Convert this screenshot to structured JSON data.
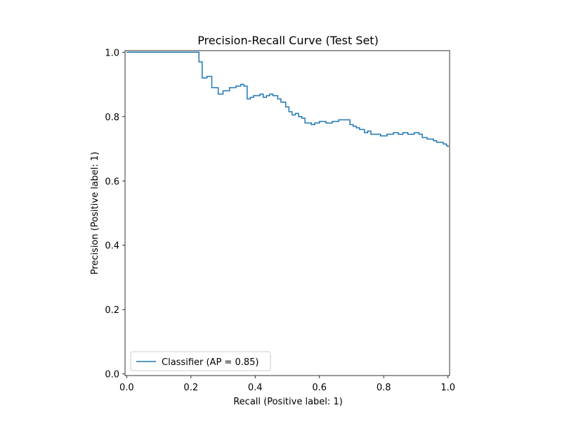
{
  "chart_data": {
    "type": "line",
    "title": "Precision-Recall Curve (Test Set)",
    "xlabel": "Recall (Positive label: 1)",
    "ylabel": "Precision (Positive label: 1)",
    "xlim": [
      -0.005,
      1.005
    ],
    "ylim": [
      -0.005,
      1.005
    ],
    "xticks": [
      0.0,
      0.2,
      0.4,
      0.6,
      0.8,
      1.0
    ],
    "xtick_labels": [
      "0.0",
      "0.2",
      "0.4",
      "0.6",
      "0.8",
      "1.0"
    ],
    "yticks": [
      0.0,
      0.2,
      0.4,
      0.6,
      0.8,
      1.0
    ],
    "ytick_labels": [
      "0.0",
      "0.2",
      "0.4",
      "0.6",
      "0.8",
      "1.0"
    ],
    "grid": false,
    "legend_position": "lower-left",
    "drawstyle": "steps-post",
    "series": [
      {
        "name": "Classifier (AP = 0.85)",
        "color": "#1f77b4",
        "recall": [
          0.0,
          0.225,
          0.235,
          0.25,
          0.265,
          0.285,
          0.3,
          0.32,
          0.34,
          0.355,
          0.365,
          0.375,
          0.385,
          0.395,
          0.415,
          0.425,
          0.435,
          0.445,
          0.455,
          0.47,
          0.48,
          0.495,
          0.505,
          0.515,
          0.525,
          0.535,
          0.545,
          0.555,
          0.575,
          0.585,
          0.6,
          0.62,
          0.64,
          0.66,
          0.68,
          0.695,
          0.705,
          0.715,
          0.725,
          0.74,
          0.75,
          0.76,
          0.775,
          0.79,
          0.81,
          0.83,
          0.845,
          0.86,
          0.875,
          0.895,
          0.91,
          0.92,
          0.935,
          0.945,
          0.955,
          0.965,
          0.975,
          0.985,
          0.995,
          1.0
        ],
        "precision": [
          1.0,
          0.97,
          0.92,
          0.925,
          0.89,
          0.87,
          0.88,
          0.89,
          0.895,
          0.9,
          0.895,
          0.855,
          0.86,
          0.865,
          0.87,
          0.86,
          0.865,
          0.87,
          0.865,
          0.855,
          0.845,
          0.83,
          0.815,
          0.805,
          0.81,
          0.8,
          0.795,
          0.78,
          0.775,
          0.78,
          0.785,
          0.78,
          0.785,
          0.79,
          0.79,
          0.775,
          0.77,
          0.765,
          0.76,
          0.75,
          0.755,
          0.745,
          0.745,
          0.74,
          0.745,
          0.75,
          0.745,
          0.75,
          0.745,
          0.75,
          0.745,
          0.735,
          0.73,
          0.73,
          0.725,
          0.72,
          0.72,
          0.715,
          0.71,
          0.705
        ]
      }
    ]
  }
}
